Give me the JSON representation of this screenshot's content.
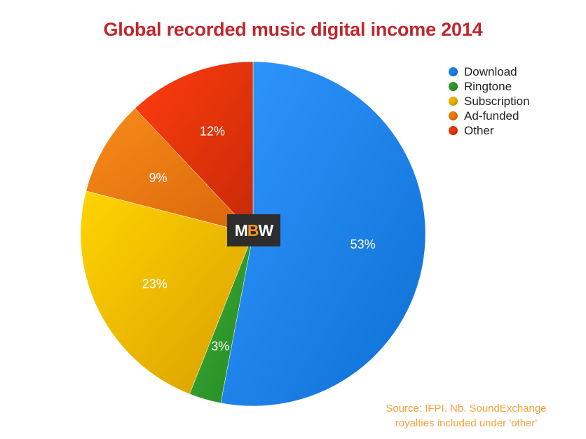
{
  "chart_data": {
    "type": "pie",
    "title": "Global recorded music digital income 2014",
    "slices": [
      {
        "name": "Download",
        "value": 53,
        "label": "53%",
        "color": "#1b7fe6"
      },
      {
        "name": "Ringtone",
        "value": 3,
        "label": "3%",
        "color": "#2f9a2a"
      },
      {
        "name": "Subscription",
        "value": 23,
        "label": "23%",
        "color": "#e9b400"
      },
      {
        "name": "Ad-funded",
        "value": 9,
        "label": "9%",
        "color": "#ee7a0f"
      },
      {
        "name": "Other",
        "value": 12,
        "label": "12%",
        "color": "#e8360b"
      }
    ],
    "legend_position": "top-right",
    "source_note": [
      "Source: IFPI.  Nb. SoundExchange",
      "royalties included under 'other'"
    ]
  },
  "logo": {
    "m": "M",
    "b": "B",
    "w": "W"
  },
  "colors": {
    "title": "#c0272d",
    "source": "#f5a13a",
    "logo_bg": "#2d2d2d",
    "logo_accent": "#f7941d"
  }
}
